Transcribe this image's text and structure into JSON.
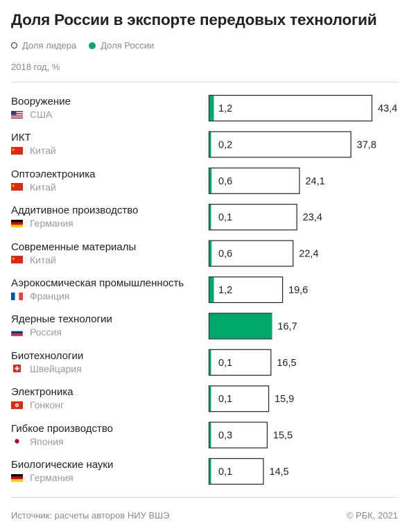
{
  "title": "Доля России в экспорте передовых технологий",
  "legend": {
    "leader": "Доля лидера",
    "russia": "Доля России"
  },
  "subtitle": "2018 год, %",
  "colors": {
    "russia": "#00a86b",
    "outline": "#222222",
    "text": "#222222",
    "muted": "#8a8a8a"
  },
  "chart_data": {
    "type": "bar",
    "categories": [
      "Вооружение",
      "ИКТ",
      "Оптоэлектроника",
      "Аддитивное производство",
      "Современные материалы",
      "Аэрокосмическая промышленность",
      "Ядерные технологии",
      "Биотехнологии",
      "Электроника",
      "Гибкое производство",
      "Биологические науки"
    ],
    "leaders": [
      "США",
      "Китай",
      "Китай",
      "Германия",
      "Китай",
      "Франция",
      "Россия",
      "Швейцария",
      "Гонконг",
      "Япония",
      "Германия"
    ],
    "leader_flags": [
      "us-flag",
      "cn-flag",
      "cn-flag",
      "de-flag",
      "cn-flag",
      "fr-flag",
      "ru-flag",
      "ch-flag",
      "hk-flag",
      "jp-flag",
      "de-flag"
    ],
    "series": [
      {
        "name": "Доля лидера",
        "values": [
          43.4,
          37.8,
          24.1,
          23.4,
          22.4,
          19.6,
          16.7,
          16.5,
          15.9,
          15.5,
          14.5
        ]
      },
      {
        "name": "Доля России",
        "values": [
          1.2,
          0.2,
          0.6,
          0.1,
          0.6,
          1.2,
          16.7,
          0.1,
          0.1,
          0.3,
          0.1
        ]
      }
    ],
    "russia_labels": [
      "1,2",
      "0,2",
      "0,6",
      "0,1",
      "0,6",
      "1,2",
      "",
      "0,1",
      "0,1",
      "0,3",
      "0,1"
    ],
    "leader_labels": [
      "43,4",
      "37,8",
      "24,1",
      "23,4",
      "22,4",
      "19,6",
      "16,7",
      "16,5",
      "15,9",
      "15,5",
      "14,5"
    ],
    "xlim": [
      0,
      43.4
    ]
  },
  "footer": {
    "source": "Источник: расчеты авторов НИУ ВШЭ",
    "copyright": "© РБК, 2021"
  }
}
